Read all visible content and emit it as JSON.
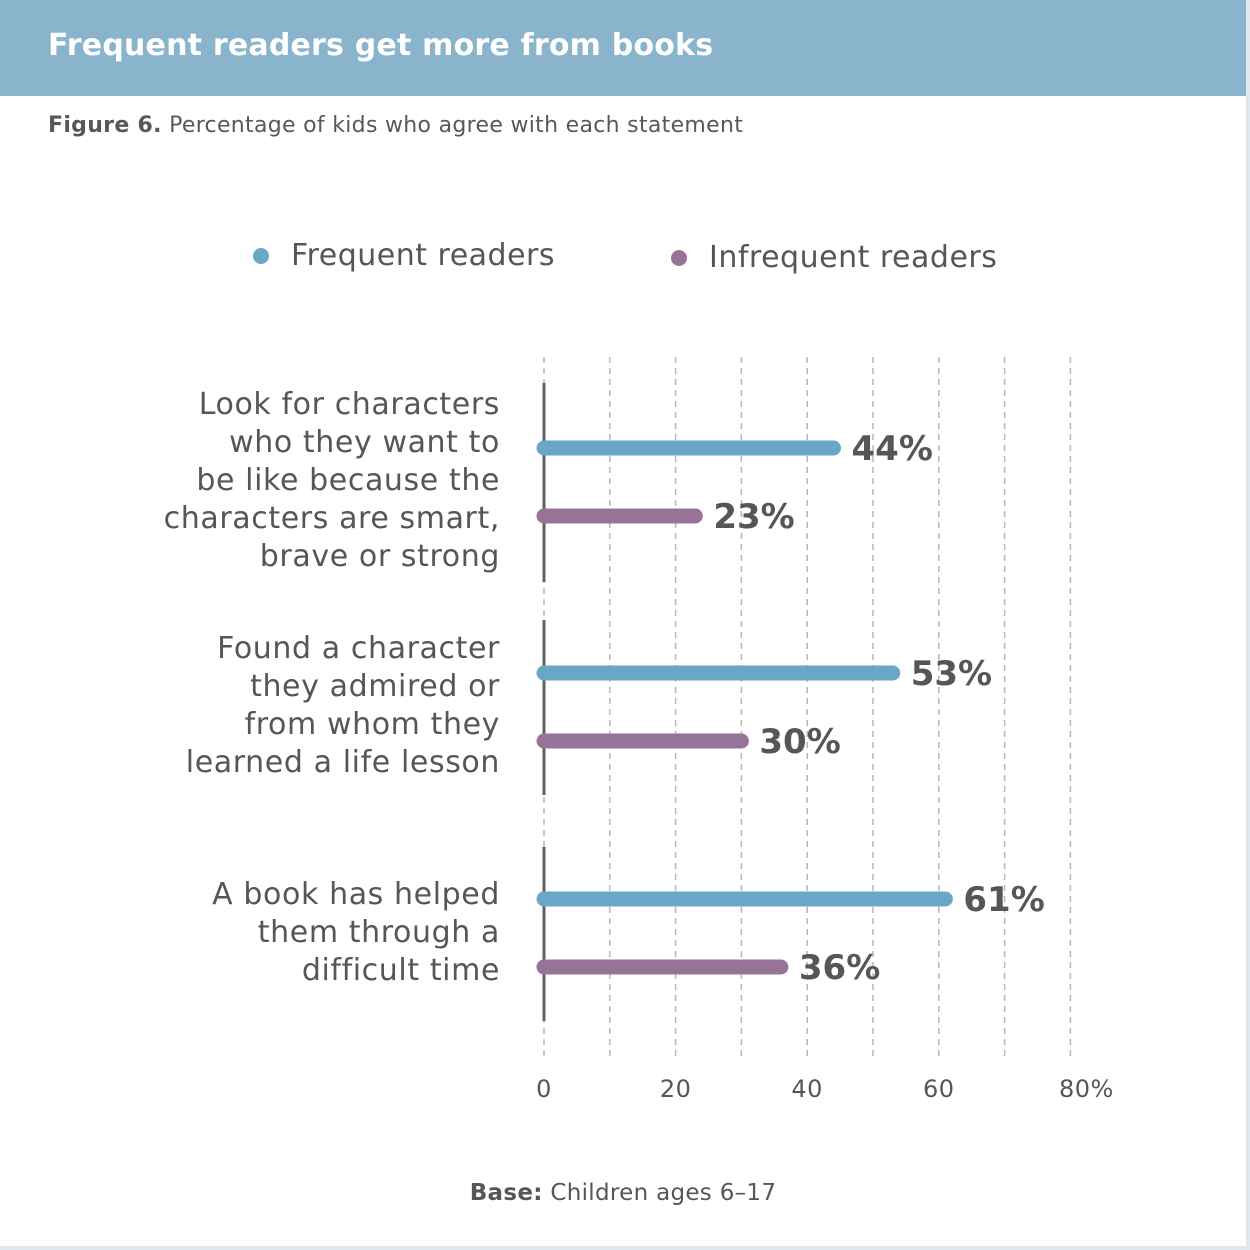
{
  "header": {
    "title": "Frequent readers get more from books"
  },
  "subtitle": {
    "figure": "Figure 6.",
    "text": "Percentage of kids who agree with each statement"
  },
  "footer": {
    "base_label": "Base:",
    "base_text": "Children ages 6–17"
  },
  "colors": {
    "frequent": "#6aa7c7",
    "infrequent": "#987398",
    "header": "#89b4cb",
    "axis": "#606165",
    "grid": "#b5b5b5"
  },
  "chart_data": {
    "type": "bar",
    "orientation": "horizontal",
    "categories": [
      "Look for characters\nwho they want to\nbe like because the\ncharacters are smart,\nbrave or strong",
      "Found a character\nthey admired or\nfrom whom they\nlearned a life lesson",
      "A book has helped\nthem through a\ndifficult time"
    ],
    "series": [
      {
        "name": "Frequent readers",
        "values": [
          44,
          53,
          61
        ],
        "labels": [
          "44%",
          "53%",
          "61%"
        ]
      },
      {
        "name": "Infrequent readers",
        "values": [
          23,
          30,
          36
        ],
        "labels": [
          "23%",
          "30%",
          "36%"
        ]
      }
    ],
    "xlim": [
      0,
      80
    ],
    "ticks": [
      0,
      20,
      40,
      60,
      80
    ],
    "tick_labels": [
      "0",
      "20",
      "40",
      "60",
      "80%"
    ],
    "gridlines": [
      0,
      10,
      20,
      30,
      40,
      50,
      60,
      70,
      80
    ],
    "grid": true,
    "legend": "top"
  }
}
